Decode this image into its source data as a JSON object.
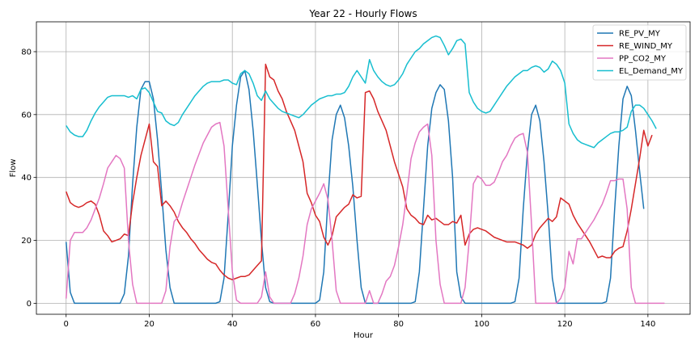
{
  "chart_data": {
    "type": "line",
    "title": "Year 22 - Hourly Flows",
    "xlabel": "Hour",
    "ylabel": "Flow",
    "xlim": [
      -7.15,
      150.15
    ],
    "ylim": [
      -3.5,
      89.5
    ],
    "xticks": [
      0,
      20,
      40,
      60,
      80,
      100,
      120,
      140
    ],
    "yticks": [
      0,
      20,
      40,
      60,
      80
    ],
    "grid": true,
    "legend_position": "top-right",
    "series": [
      {
        "name": "RE_PV_MY",
        "color": "#1f77b4",
        "values": [
          19.5,
          3.5,
          0,
          0,
          0,
          0,
          0,
          0,
          0,
          0,
          0,
          0,
          0,
          0,
          3,
          15,
          38,
          56,
          68,
          70.5,
          70.5,
          65,
          52,
          35,
          17,
          5,
          0,
          0,
          0,
          0,
          0,
          0,
          0,
          0,
          0,
          0,
          0,
          0.5,
          8,
          28,
          50,
          63,
          72,
          74,
          68,
          55,
          38,
          20,
          5,
          0.5,
          0,
          0,
          0,
          0,
          0,
          0,
          0,
          0,
          0,
          0,
          0,
          1,
          10,
          33,
          52,
          60,
          63,
          59,
          50,
          37,
          20,
          5,
          0,
          0,
          0,
          0,
          0,
          0,
          0,
          0,
          0,
          0,
          0,
          0,
          0.5,
          10,
          30,
          50,
          62,
          67,
          69.5,
          68,
          58,
          40,
          10,
          2,
          0,
          0,
          0,
          0,
          0,
          0,
          0,
          0,
          0,
          0,
          0,
          0,
          0.5,
          8,
          30,
          48,
          60,
          63,
          58,
          45,
          28,
          8,
          0,
          0,
          0,
          0,
          0,
          0,
          0,
          0,
          0,
          0,
          0,
          0,
          0.5,
          8,
          30,
          50,
          65,
          69,
          66,
          55,
          42,
          30
        ]
      },
      {
        "name": "RE_WIND_MY",
        "color": "#d62728",
        "values": [
          35.5,
          32,
          31,
          30.5,
          31,
          32,
          32.5,
          31.5,
          28,
          23,
          21.5,
          19.5,
          20,
          20.5,
          22,
          21.5,
          32,
          40,
          47,
          52,
          57,
          45,
          43.5,
          31,
          32.5,
          31,
          29,
          26,
          24,
          22.5,
          20.5,
          19,
          17,
          15.5,
          14,
          13,
          12.5,
          10.5,
          9,
          8,
          7.5,
          8,
          8.5,
          8.5,
          9,
          10.5,
          12,
          13.5,
          76,
          72,
          71,
          67.5,
          65,
          61,
          58,
          55,
          50,
          45,
          35,
          32,
          28,
          26,
          21,
          18.5,
          21.5,
          27.5,
          29,
          30.5,
          31.5,
          34.5,
          33.5,
          34,
          67,
          67.5,
          65,
          61,
          58,
          55,
          50,
          45,
          41,
          37,
          30,
          28,
          27,
          25.5,
          25,
          28,
          26.5,
          27,
          26,
          25,
          25,
          26,
          25.5,
          28,
          18.5,
          22,
          23.5,
          24,
          23.5,
          23,
          22,
          21,
          20.5,
          20,
          19.5,
          19.5,
          19.5,
          19,
          18.5,
          17.5,
          18.5,
          22,
          24,
          25.5,
          27,
          26,
          27.5,
          33.5,
          32.5,
          31.5,
          28,
          25.5,
          23.5,
          21.5,
          19.5,
          17,
          14.5,
          15,
          14.5,
          14.5,
          16.5,
          17.5,
          18,
          23,
          30,
          38,
          46,
          55,
          50,
          53.5
        ]
      },
      {
        "name": "PP_CO2_MY",
        "color": "#e377c2",
        "values": [
          1.5,
          20,
          22.5,
          22.5,
          22.5,
          24,
          26.5,
          30,
          33.5,
          38,
          43,
          45,
          47,
          46,
          43,
          20,
          6,
          0,
          0,
          0,
          0,
          0,
          0,
          0,
          4,
          18,
          26,
          27.5,
          32,
          36,
          40,
          44,
          47.5,
          51,
          53.5,
          56,
          57,
          57.5,
          50,
          30,
          10,
          1,
          0,
          0,
          0,
          0,
          0,
          2,
          10,
          2,
          0,
          0,
          0,
          0,
          0,
          3,
          8,
          15,
          25,
          30,
          32.5,
          35,
          38,
          33,
          20,
          4,
          0,
          0,
          0,
          0,
          0,
          0,
          0,
          4,
          0,
          0,
          3,
          7,
          8.5,
          12,
          18,
          25,
          35,
          46,
          51,
          54.5,
          56,
          57,
          47,
          20,
          6,
          0,
          0,
          0,
          0,
          0,
          5,
          20,
          38,
          40.5,
          39.5,
          37.5,
          37.5,
          38.5,
          41.5,
          45,
          47,
          50,
          52.5,
          53.5,
          54,
          48,
          25,
          0,
          0,
          0,
          0,
          0,
          0,
          1.5,
          5,
          16.5,
          12.5,
          20.5,
          20.5,
          22.5,
          24.5,
          26.5,
          29,
          31.5,
          35,
          39,
          39,
          39.5,
          39.5,
          30,
          5,
          0,
          0,
          0,
          0,
          0,
          0,
          0,
          0
        ]
      },
      {
        "name": "EL_Demand_MY",
        "color": "#17becf",
        "values": [
          56.5,
          54.5,
          53.5,
          53,
          53,
          55,
          58,
          60.5,
          62.5,
          64,
          65.5,
          66,
          66,
          66,
          66,
          65.5,
          66,
          65,
          68,
          68.5,
          67,
          64,
          61,
          60.5,
          58,
          57,
          56.5,
          57.5,
          60,
          62,
          64,
          66,
          67.5,
          69,
          70,
          70.5,
          70.5,
          70.5,
          71,
          71,
          70,
          69.5,
          73,
          74,
          73,
          70,
          66,
          64.5,
          67.5,
          65,
          63.5,
          62,
          61,
          60.5,
          60,
          59.5,
          59,
          60,
          61.5,
          63,
          64,
          65,
          65.5,
          66,
          66,
          66.5,
          66.5,
          67,
          69,
          72,
          74,
          72,
          70,
          77.5,
          74,
          72,
          70.5,
          69.5,
          69,
          69.5,
          71,
          73,
          76,
          78,
          80,
          81,
          82.5,
          83.5,
          84.5,
          85,
          84.5,
          82,
          79,
          81,
          83.5,
          84,
          82.5,
          67,
          64,
          62,
          61,
          60.5,
          61,
          63,
          65,
          67,
          69,
          70.5,
          72,
          73,
          74,
          74,
          75,
          75.5,
          75,
          73.5,
          74.5,
          77,
          76,
          74,
          70,
          57,
          54,
          52,
          51,
          50.5,
          50,
          49.5,
          51,
          52,
          53,
          54,
          54.5,
          54.5,
          55,
          56,
          61,
          63,
          63,
          62,
          60,
          58,
          55.5
        ]
      }
    ]
  }
}
